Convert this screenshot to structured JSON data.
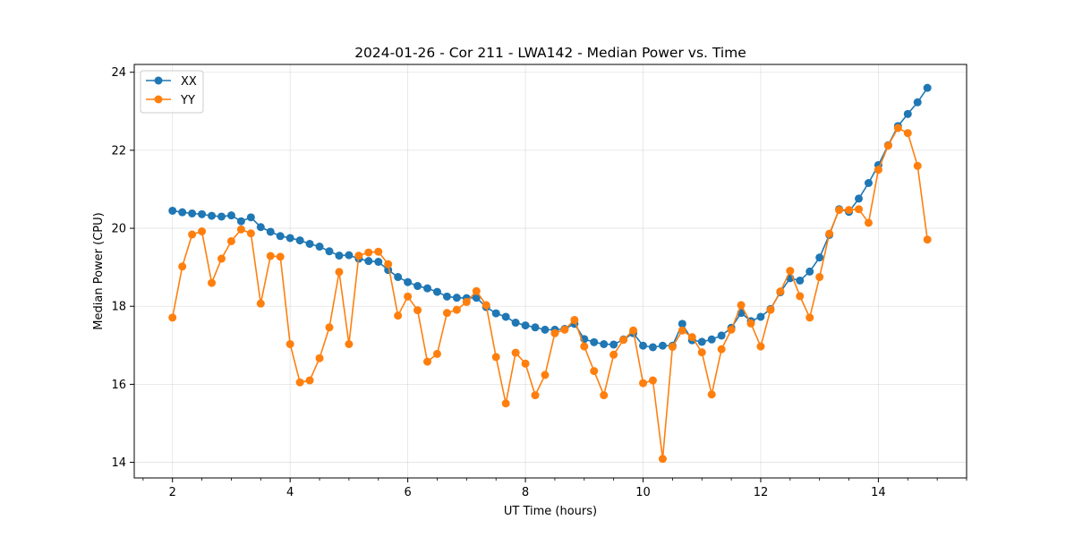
{
  "chart_data": {
    "type": "line",
    "title": "2024-01-26 - Cor 211 - LWA142 - Median Power vs. Time",
    "xlabel": "UT Time (hours)",
    "ylabel": "Median Power (CPU)",
    "xlim": [
      1.35,
      15.5
    ],
    "ylim": [
      13.6,
      24.2
    ],
    "xticks": [
      2,
      4,
      6,
      8,
      10,
      12,
      14
    ],
    "yticks": [
      14,
      16,
      18,
      20,
      22,
      24
    ],
    "x_minor_step": 0.5,
    "grid": true,
    "legend_position": "upper-left",
    "x": [
      2.0,
      2.1667,
      2.3333,
      2.5,
      2.6667,
      2.8333,
      3.0,
      3.1667,
      3.3333,
      3.5,
      3.6667,
      3.8333,
      4.0,
      4.1667,
      4.3333,
      4.5,
      4.6667,
      4.8333,
      5.0,
      5.1667,
      5.3333,
      5.5,
      5.6667,
      5.8333,
      6.0,
      6.1667,
      6.3333,
      6.5,
      6.6667,
      6.8333,
      7.0,
      7.1667,
      7.3333,
      7.5,
      7.6667,
      7.8333,
      8.0,
      8.1667,
      8.3333,
      8.5,
      8.6667,
      8.8333,
      9.0,
      9.1667,
      9.3333,
      9.5,
      9.6667,
      9.8333,
      10.0,
      10.1667,
      10.3333,
      10.5,
      10.6667,
      10.8333,
      11.0,
      11.1667,
      11.3333,
      11.5,
      11.6667,
      11.8333,
      12.0,
      12.1667,
      12.3333,
      12.5,
      12.6667,
      12.8333,
      13.0,
      13.1667,
      13.3333,
      13.5,
      13.6667,
      13.8333,
      14.0,
      14.1667,
      14.3333,
      14.5,
      14.6667,
      14.8333
    ],
    "series": [
      {
        "name": "XX",
        "color": "#1f77b4",
        "values": [
          20.45,
          20.41,
          20.38,
          20.36,
          20.32,
          20.3,
          20.33,
          20.18,
          20.28,
          20.03,
          19.91,
          19.8,
          19.75,
          19.69,
          19.6,
          19.53,
          19.41,
          19.3,
          19.31,
          19.22,
          19.16,
          19.14,
          18.93,
          18.75,
          18.62,
          18.52,
          18.46,
          18.37,
          18.25,
          18.22,
          18.21,
          18.22,
          17.98,
          17.82,
          17.73,
          17.58,
          17.51,
          17.46,
          17.4,
          17.4,
          17.42,
          17.55,
          17.16,
          17.08,
          17.03,
          17.02,
          17.15,
          17.31,
          16.99,
          16.95,
          16.99,
          16.99,
          17.55,
          17.13,
          17.09,
          17.15,
          17.25,
          17.45,
          17.83,
          17.62,
          17.73,
          17.93,
          18.36,
          18.72,
          18.66,
          18.89,
          19.25,
          19.83,
          20.49,
          20.42,
          20.76,
          21.16,
          21.62,
          22.13,
          22.62,
          22.93,
          23.23,
          23.6
        ]
      },
      {
        "name": "YY",
        "color": "#ff7f0e",
        "values": [
          17.71,
          19.02,
          19.84,
          19.92,
          18.6,
          19.22,
          19.67,
          19.97,
          19.87,
          18.07,
          19.29,
          19.27,
          17.03,
          16.05,
          16.1,
          16.67,
          17.46,
          18.88,
          17.03,
          19.3,
          19.38,
          19.4,
          19.08,
          17.76,
          18.25,
          17.9,
          16.58,
          16.78,
          17.83,
          17.91,
          18.11,
          18.39,
          18.03,
          16.7,
          15.51,
          16.81,
          16.53,
          15.72,
          16.24,
          17.31,
          17.4,
          17.65,
          16.97,
          16.34,
          15.72,
          16.76,
          17.14,
          17.38,
          16.03,
          16.1,
          14.09,
          16.96,
          17.38,
          17.21,
          16.82,
          15.74,
          16.9,
          17.4,
          18.03,
          17.56,
          16.97,
          17.91,
          18.38,
          18.91,
          18.26,
          17.71,
          18.75,
          19.86,
          20.47,
          20.47,
          20.49,
          20.14,
          21.5,
          22.12,
          22.57,
          22.44,
          21.6,
          19.71
        ]
      }
    ]
  }
}
